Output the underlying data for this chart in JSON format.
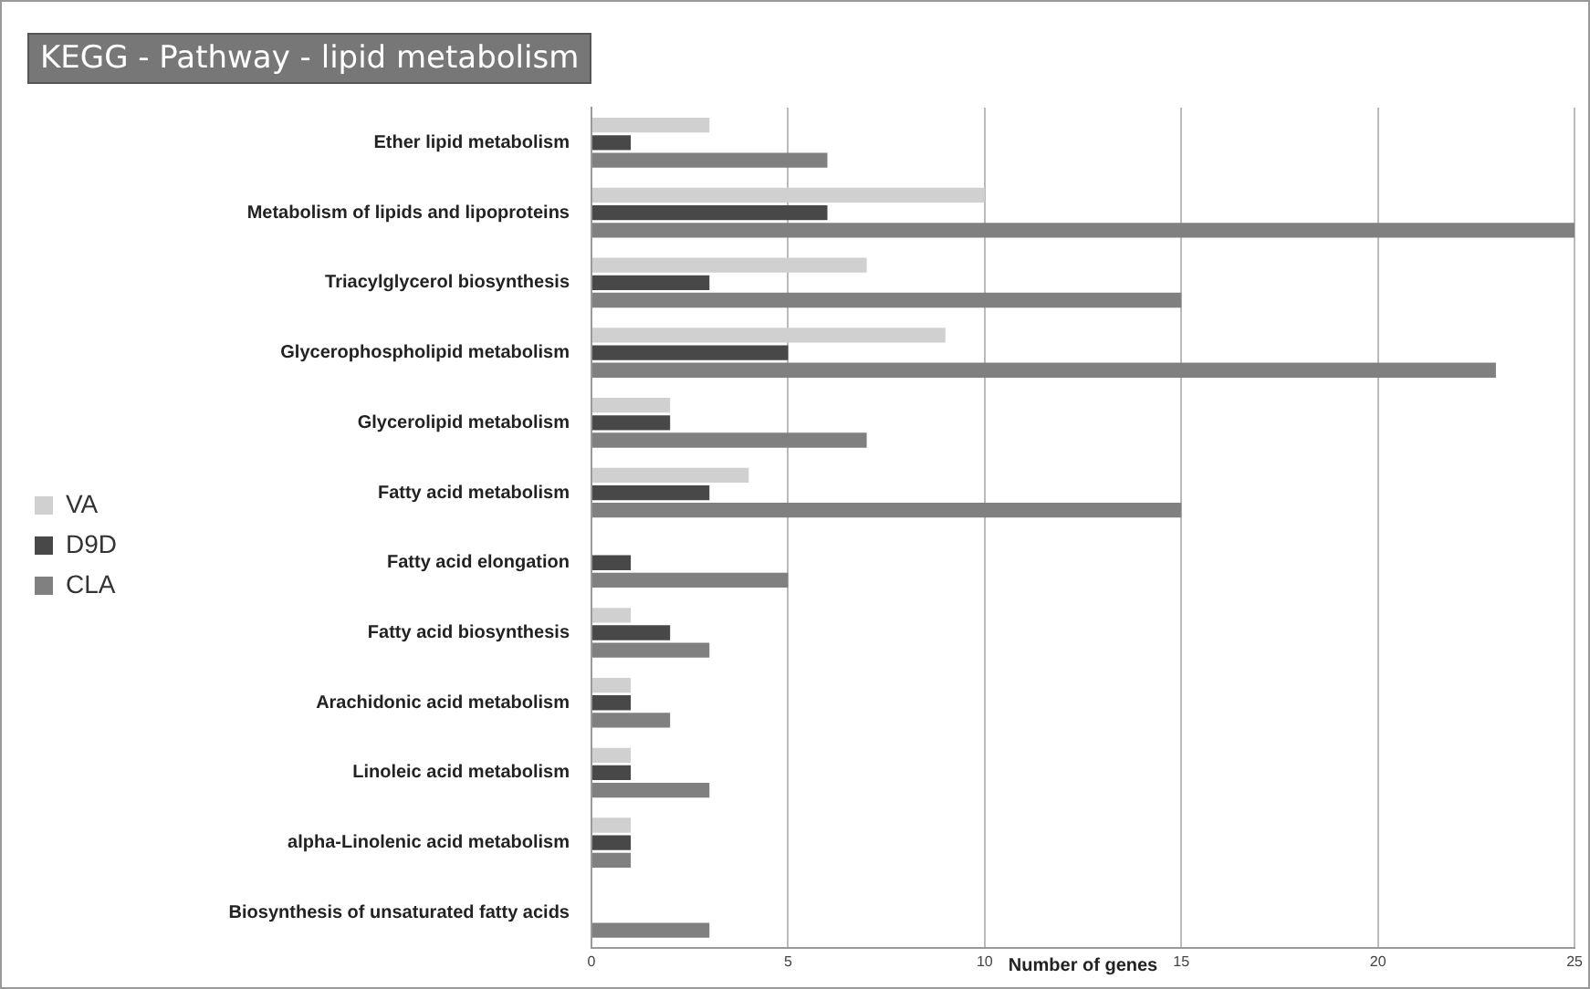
{
  "chart_data": {
    "type": "bar",
    "orientation": "horizontal",
    "title": "KEGG - Pathway - lipid metabolism",
    "xlabel": "Number of genes",
    "categories": [
      "Ether lipid metabolism",
      "Metabolism of lipids and lipoproteins",
      "Triacylglycerol biosynthesis",
      "Glycerophospholipid metabolism",
      "Glycerolipid metabolism",
      "Fatty acid metabolism",
      "Fatty acid elongation",
      "Fatty acid biosynthesis",
      "Arachidonic acid metabolism",
      "Linoleic acid metabolism",
      "alpha-Linolenic acid metabolism",
      "Biosynthesis of unsaturated fatty acids"
    ],
    "series": [
      {
        "name": "VA",
        "color": "#d0d0d0",
        "values": [
          3,
          10,
          7,
          9,
          2,
          4,
          0,
          1,
          1,
          1,
          1,
          0
        ]
      },
      {
        "name": "D9D",
        "color": "#484848",
        "values": [
          1,
          6,
          3,
          5,
          2,
          3,
          1,
          2,
          1,
          1,
          1,
          0
        ]
      },
      {
        "name": "CLA",
        "color": "#808080",
        "values": [
          6,
          25,
          15,
          23,
          7,
          15,
          5,
          3,
          2,
          3,
          1,
          3
        ]
      }
    ],
    "xlim": [
      0,
      25
    ],
    "xticks": [
      0,
      5,
      10,
      15,
      20,
      25
    ],
    "grid": "x",
    "legend": "left"
  }
}
